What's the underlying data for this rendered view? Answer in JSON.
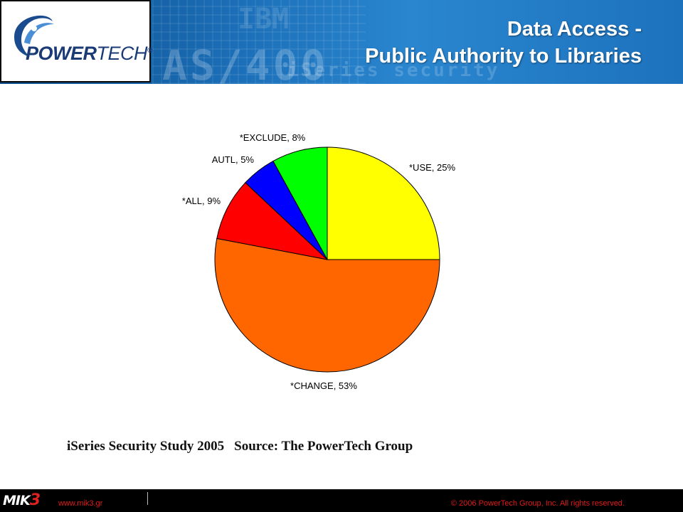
{
  "header": {
    "logo_text_power": "POWER",
    "logo_text_tech": "TECH",
    "logo_registered": "®",
    "title_line1": "Data Access -",
    "title_line2": "Public Authority to Libraries",
    "bg_text_a": "AS/400",
    "bg_text_b": "iSeries security",
    "bg_text_c": "IBM"
  },
  "chart_data": {
    "type": "pie",
    "title": "",
    "slices": [
      {
        "name": "*USE",
        "value": 25,
        "label": "*USE, 25%",
        "color": "#ffff00"
      },
      {
        "name": "*CHANGE",
        "value": 53,
        "label": "*CHANGE, 53%",
        "color": "#ff6600"
      },
      {
        "name": "*ALL",
        "value": 9,
        "label": "*ALL, 9%",
        "color": "#ff0000"
      },
      {
        "name": "AUTL",
        "value": 5,
        "label": "AUTL, 5%",
        "color": "#0000ff"
      },
      {
        "name": "*EXCLUDE",
        "value": 8,
        "label": "*EXCLUDE, 8%",
        "color": "#00ff00"
      }
    ],
    "start": "12 o'clock",
    "direction": "clockwise",
    "legend": "none"
  },
  "caption": {
    "study": "iSeries Security Study 2005",
    "source": "Source: The PowerTech Group"
  },
  "footer": {
    "brand_mik": "MIK",
    "brand_3": "3",
    "url": "www.mik3.gr",
    "copyright": "© 2006 PowerTech Group, Inc. All rights reserved."
  }
}
